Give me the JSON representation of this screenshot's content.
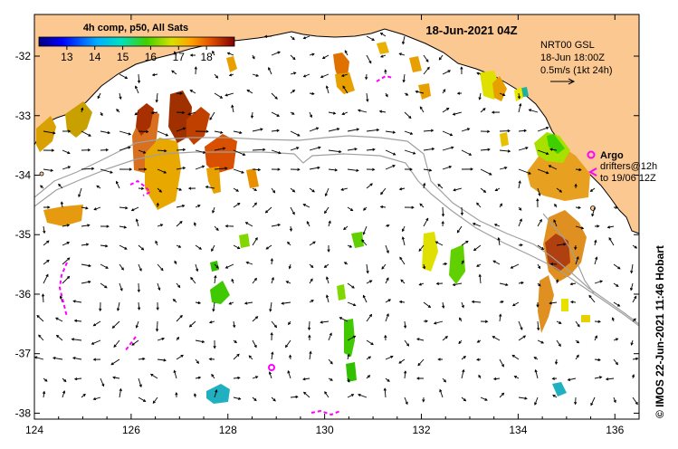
{
  "title": "18-Jun-2021 04Z",
  "colorbar": {
    "label": "4h comp, p50, All Sats",
    "ticks": [
      "13",
      "14",
      "15",
      "16",
      "17",
      "18"
    ],
    "range": [
      12,
      19
    ]
  },
  "current_model": {
    "line1": "NRT00 GSL",
    "line2": "18-Jun 18:00Z",
    "scale_label": "0.5m/s (1kt 24h)"
  },
  "argo_legend": {
    "label": "Argo",
    "drifters_line1": "drifters@12h",
    "drifters_line2": "to 19/06 12Z"
  },
  "credit": "© IMOS 22-Jun-2021 11:46 Hobart",
  "axes": {
    "x_ticks": [
      "124",
      "126",
      "128",
      "130",
      "132",
      "134",
      "136"
    ],
    "y_ticks": [
      "-32",
      "-33",
      "-34",
      "-35",
      "-36",
      "-37",
      "-38"
    ],
    "x_range": [
      124,
      136.5
    ],
    "y_range": [
      -38.1,
      -31.3
    ]
  },
  "colors": {
    "land": "#fcc891",
    "argo": "#ff00ff",
    "track": "#a0a0a0"
  }
}
